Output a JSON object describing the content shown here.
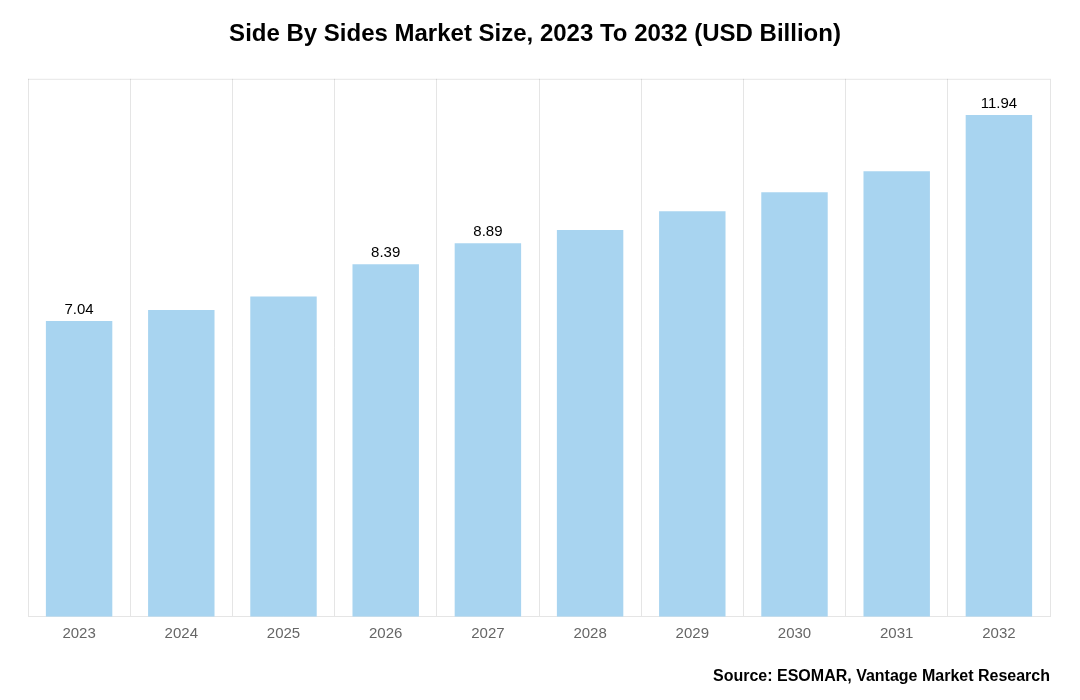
{
  "chart_data": {
    "type": "bar",
    "title": "Side By Sides Market Size, 2023 To 2032 (USD Billion)",
    "categories": [
      "2023",
      "2024",
      "2025",
      "2026",
      "2027",
      "2028",
      "2029",
      "2030",
      "2031",
      "2032"
    ],
    "values": [
      7.04,
      7.3,
      7.62,
      8.39,
      8.89,
      9.2,
      9.65,
      10.1,
      10.6,
      11.94
    ],
    "value_labels": [
      "7.04",
      null,
      null,
      "8.39",
      "8.89",
      null,
      null,
      null,
      null,
      "11.94"
    ],
    "color": "#a8d4f0",
    "ylim": [
      0,
      12.8
    ],
    "grid": true,
    "tick_labels": "x",
    "annotation": "Source: ESOMAR, Vantage Market Research"
  }
}
